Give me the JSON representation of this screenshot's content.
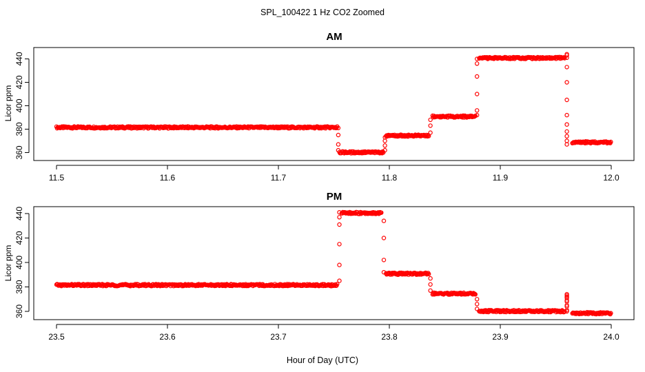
{
  "figure": {
    "title": "SPL_100422  1 Hz CO2 Zoomed",
    "xlabel": "Hour of Day (UTC)"
  },
  "colors": {
    "points": "#ff0000",
    "axes": "#000000",
    "background": "#ffffff"
  },
  "chart_data": [
    {
      "type": "scatter",
      "title": "AM",
      "xlabel": "",
      "ylabel": "Licor ppm",
      "xlim": [
        11.5,
        12.0
      ],
      "ylim": [
        356,
        448
      ],
      "x_ticks": [
        "11.5",
        "11.6",
        "11.7",
        "11.8",
        "11.9",
        "12.0"
      ],
      "y_ticks": [
        "360",
        "380",
        "400",
        "420",
        "440"
      ],
      "grid": false,
      "legend": "none",
      "marker": "open circle",
      "series": [
        {
          "segments": [
            {
              "x": [
                11.5,
                11.753
              ],
              "y": 381.5
            },
            {
              "x": [
                11.755,
                11.795
              ],
              "y": 360.2
            },
            {
              "x": [
                11.797,
                11.836
              ],
              "y": 374.5
            },
            {
              "x": [
                11.839,
                11.878
              ],
              "y": 390.8
            },
            {
              "x": [
                11.881,
                11.958
              ],
              "y": 440.8
            },
            {
              "x": [
                11.965,
                12.0
              ],
              "y": 368.8
            }
          ],
          "transitions": [
            {
              "x": 11.754,
              "y": [
                381,
                375,
                367,
                362
              ]
            },
            {
              "x": 11.796,
              "y": [
                362,
                366,
                370,
                373
              ]
            },
            {
              "x": 11.837,
              "y": [
                377,
                383,
                388
              ]
            },
            {
              "x": 11.879,
              "y": [
                392,
                396,
                410,
                425,
                436,
                440
              ]
            },
            {
              "x": 11.96,
              "y": [
                443,
                444,
                441,
                433,
                420,
                405,
                392,
                384,
                378,
                374,
                370,
                367
              ]
            }
          ]
        }
      ]
    },
    {
      "type": "scatter",
      "title": "PM",
      "xlabel": "",
      "ylabel": "Licor ppm",
      "xlim": [
        23.5,
        24.0
      ],
      "ylim": [
        352,
        445
      ],
      "x_ticks": [
        "23.5",
        "23.6",
        "23.7",
        "23.8",
        "23.9",
        "24.0"
      ],
      "y_ticks": [
        "360",
        "380",
        "400",
        "420",
        "440"
      ],
      "grid": false,
      "legend": "none",
      "marker": "open circle",
      "series": [
        {
          "segments": [
            {
              "x": [
                23.5,
                23.753
              ],
              "y": 381.5
            },
            {
              "x": [
                23.757,
                23.793
              ],
              "y": 440.5
            },
            {
              "x": [
                23.797,
                23.836
              ],
              "y": 390.8
            },
            {
              "x": [
                23.839,
                23.878
              ],
              "y": 374.5
            },
            {
              "x": [
                23.881,
                23.958
              ],
              "y": 360.2
            },
            {
              "x": [
                23.965,
                24.0
              ],
              "y": 358.5
            }
          ],
          "transitions": [
            {
              "x": 23.755,
              "y": [
                385,
                398,
                415,
                431,
                437,
                441
              ]
            },
            {
              "x": 23.795,
              "y": [
                434,
                420,
                402,
                392
              ]
            },
            {
              "x": 23.837,
              "y": [
                387,
                382,
                377
              ]
            },
            {
              "x": 23.879,
              "y": [
                370,
                366,
                362
              ]
            },
            {
              "x": 23.96,
              "y": [
                360,
                364,
                368,
                371,
                373,
                374,
                372,
                369,
                365,
                361
              ]
            }
          ]
        }
      ]
    }
  ]
}
